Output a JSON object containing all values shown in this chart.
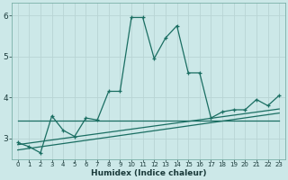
{
  "xlabel": "Humidex (Indice chaleur)",
  "bg_color": "#cce8e8",
  "grid_color": "#b8d4d4",
  "line_color": "#1a6e62",
  "xlim": [
    -0.5,
    23.5
  ],
  "ylim": [
    2.5,
    6.3
  ],
  "yticks": [
    3,
    4,
    5,
    6
  ],
  "xticks": [
    0,
    1,
    2,
    3,
    4,
    5,
    6,
    7,
    8,
    9,
    10,
    11,
    12,
    13,
    14,
    15,
    16,
    17,
    18,
    19,
    20,
    21,
    22,
    23
  ],
  "main_x": [
    0,
    1,
    2,
    3,
    4,
    5,
    6,
    7,
    8,
    9,
    10,
    11,
    12,
    13,
    14,
    15,
    16,
    17,
    18,
    19,
    20,
    21,
    22,
    23
  ],
  "main_y": [
    2.9,
    2.8,
    2.65,
    3.55,
    3.2,
    3.05,
    3.5,
    3.45,
    4.15,
    4.15,
    5.95,
    5.95,
    4.95,
    5.45,
    5.75,
    4.6,
    4.6,
    3.5,
    3.65,
    3.7,
    3.7,
    3.95,
    3.8,
    4.05
  ],
  "trend1_x": [
    0,
    23
  ],
  "trend1_y": [
    2.72,
    3.62
  ],
  "trend2_x": [
    0,
    23
  ],
  "trend2_y": [
    2.85,
    3.72
  ],
  "trend3_x": [
    0,
    23
  ],
  "trend3_y": [
    3.43,
    3.43
  ]
}
